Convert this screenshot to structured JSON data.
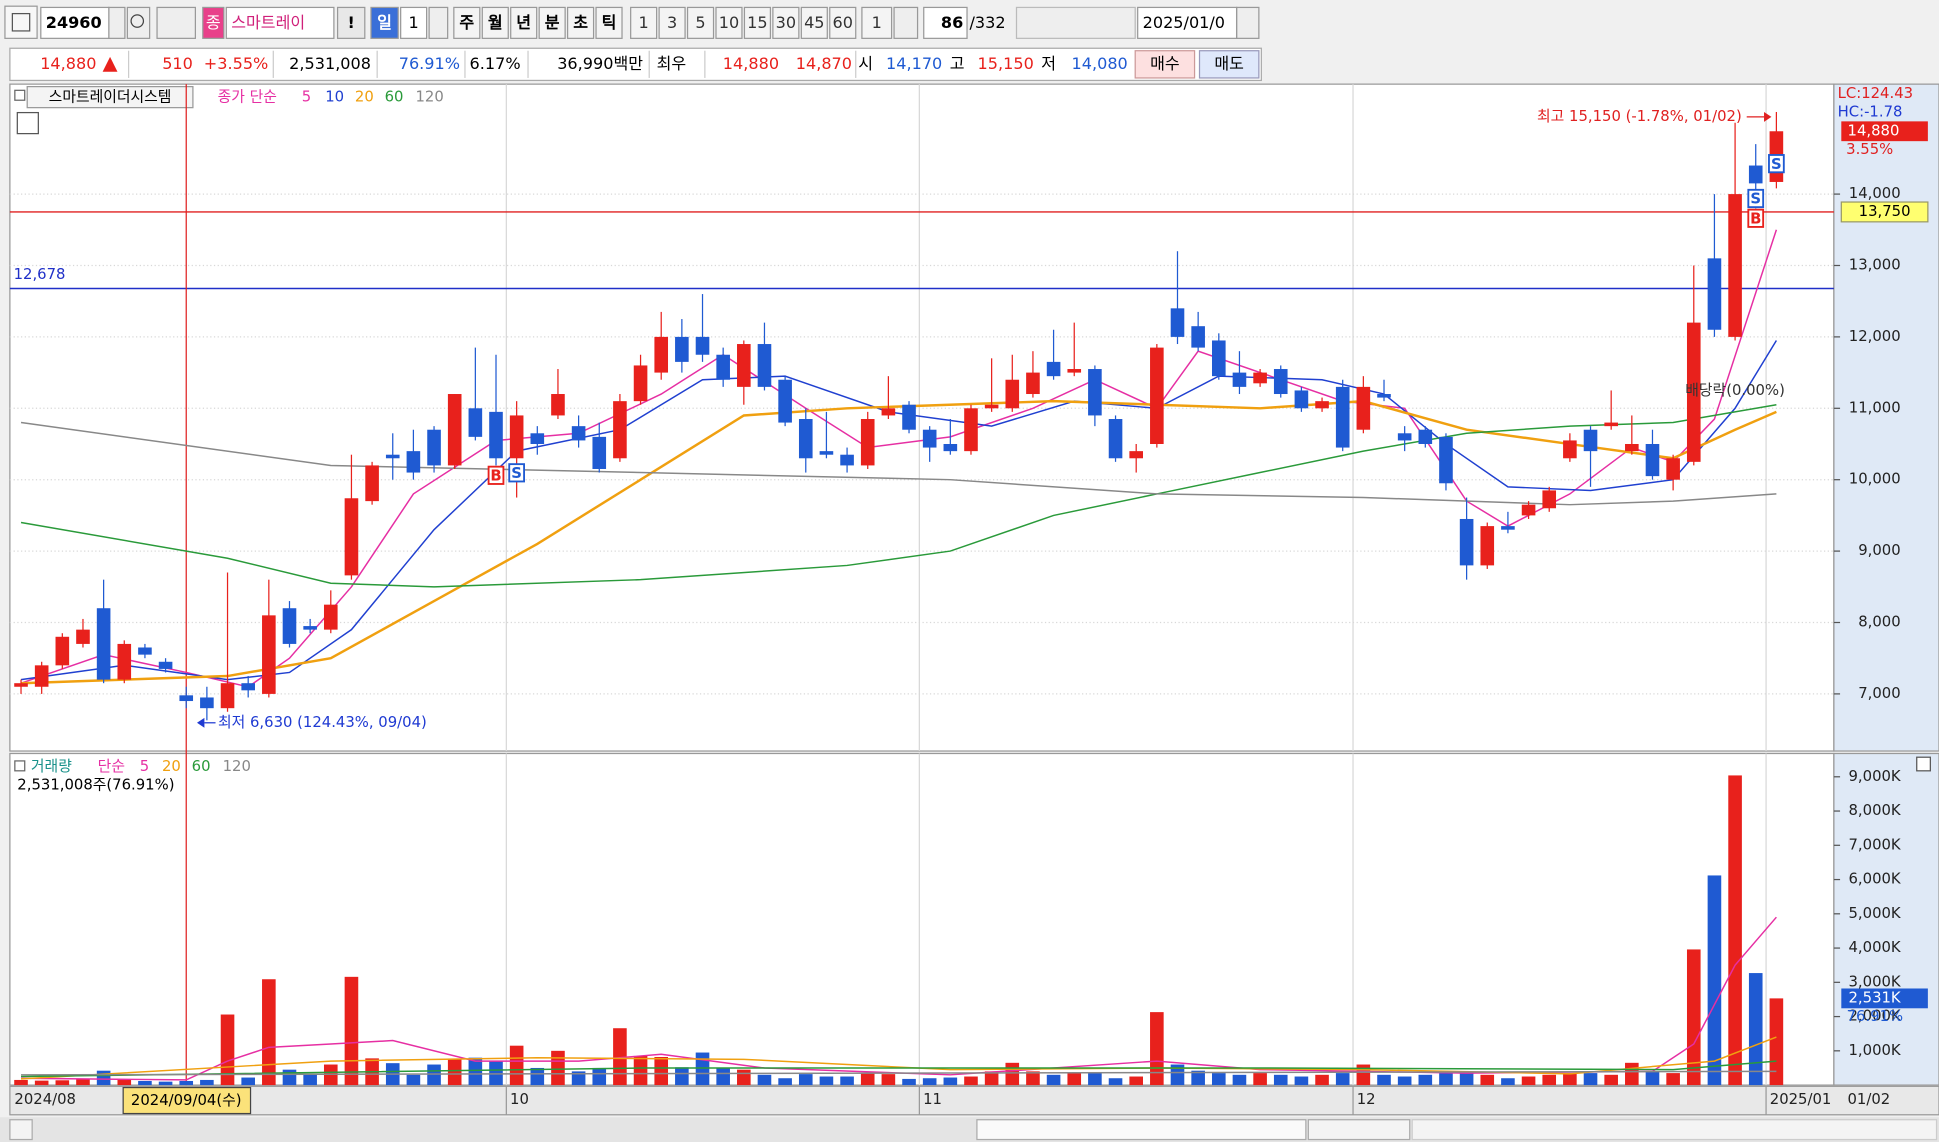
{
  "toolbar": {
    "code": "24960",
    "name_badge": "종",
    "name": "스마트레이",
    "flag": "!",
    "period_day": "일",
    "period_count": "1",
    "periods": [
      "주",
      "월",
      "년",
      "분",
      "초",
      "틱"
    ],
    "minutes": [
      "1",
      "3",
      "5",
      "10",
      "15",
      "30",
      "45",
      "60"
    ],
    "tick_count": "1",
    "view_count": "86",
    "total_count": "/332",
    "date": "2025/01/0"
  },
  "quote": {
    "price": "14,880",
    "change": "510",
    "change_pct": "+3.55%",
    "volume": "2,531,008",
    "volume_ratio": "76.91%",
    "turnover": "6.17%",
    "amount": "36,990백만",
    "bid_ask_label": "최우",
    "ask": "14,880",
    "bid": "14,870",
    "open_label": "시",
    "open": "14,170",
    "high_label": "고",
    "high": "15,150",
    "low_label": "저",
    "low": "14,080",
    "buy": "매수",
    "sell": "매도"
  },
  "chart_data": [
    {
      "type": "candlestick",
      "title": "스마트레이더시스템",
      "indicator_label": "종가 단순",
      "categories": [
        "2024/08",
        null,
        null,
        null,
        null,
        null,
        null,
        null,
        null,
        null,
        null,
        null,
        null,
        null,
        null,
        null,
        null,
        null,
        null,
        null,
        null,
        null,
        null,
        null,
        "10",
        null,
        null,
        null,
        null,
        null,
        null,
        null,
        null,
        null,
        null,
        null,
        null,
        null,
        null,
        null,
        null,
        null,
        null,
        null,
        "11",
        null,
        null,
        null,
        null,
        null,
        null,
        null,
        null,
        null,
        null,
        null,
        null,
        null,
        null,
        null,
        null,
        null,
        null,
        null,
        null,
        "12",
        null,
        null,
        null,
        null,
        null,
        null,
        null,
        null,
        null,
        null,
        null,
        null,
        null,
        null,
        null,
        null,
        null,
        null,
        null,
        "2025/01"
      ],
      "open": [
        7100,
        7100,
        7400,
        7700,
        8200,
        7200,
        7650,
        7450,
        6980,
        6950,
        6800,
        7150,
        7000,
        8200,
        7950,
        7900,
        8660,
        9700,
        10350,
        10400,
        10700,
        10200,
        11000,
        10950,
        10300,
        10650,
        10900,
        10750,
        10600,
        10300,
        11100,
        11500,
        12000,
        12000,
        11750,
        11300,
        11900,
        11400,
        10850,
        10400,
        10350,
        10200,
        10900,
        11050,
        10700,
        10500,
        10400,
        11000,
        11000,
        11200,
        11650,
        11500,
        11550,
        10850,
        10300,
        10500,
        12400,
        12150,
        11950,
        11500,
        11350,
        11550,
        11250,
        11000,
        11300,
        10700,
        11200,
        10650,
        10700,
        10600,
        9450,
        8800,
        9350,
        9500,
        9600,
        10300,
        10700,
        10750,
        10400,
        10500,
        10000,
        10250,
        13100,
        12000,
        14400,
        14170
      ],
      "high": [
        7200,
        7450,
        7850,
        8050,
        8600,
        7750,
        7700,
        7500,
        7100,
        7100,
        8700,
        7250,
        8600,
        8300,
        8050,
        8450,
        10350,
        10250,
        10650,
        10700,
        10750,
        11200,
        11850,
        11750,
        11100,
        10750,
        11550,
        10900,
        10800,
        11200,
        11750,
        12350,
        12250,
        12600,
        11850,
        11950,
        12200,
        11450,
        11000,
        10950,
        10450,
        10950,
        11450,
        11100,
        10750,
        10850,
        11050,
        11700,
        11750,
        11800,
        12100,
        12200,
        11600,
        10900,
        10500,
        11900,
        13200,
        12350,
        12050,
        11800,
        11550,
        11600,
        11300,
        11150,
        11400,
        11450,
        11400,
        10750,
        10750,
        10650,
        9750,
        9400,
        9550,
        9700,
        9900,
        10650,
        10750,
        11250,
        10900,
        10700,
        10350,
        13000,
        14000,
        15000,
        14700,
        15150
      ],
      "low": [
        7000,
        7000,
        7350,
        7650,
        7150,
        7150,
        7500,
        7300,
        6800,
        6630,
        6750,
        6950,
        6950,
        7650,
        7850,
        7850,
        8600,
        9650,
        10000,
        10000,
        10100,
        10150,
        10550,
        10200,
        9750,
        10350,
        10850,
        10450,
        10100,
        10250,
        11050,
        11400,
        11500,
        11650,
        11300,
        11050,
        11250,
        10750,
        10100,
        10300,
        10100,
        10150,
        10850,
        10650,
        10250,
        10350,
        10350,
        10950,
        10950,
        11150,
        11400,
        11450,
        10750,
        10250,
        10100,
        10450,
        11900,
        11800,
        11400,
        11200,
        11300,
        11150,
        10950,
        10950,
        10400,
        10650,
        11100,
        10400,
        10450,
        9850,
        8600,
        8750,
        9250,
        9450,
        9550,
        10250,
        9900,
        10700,
        10350,
        10000,
        9850,
        10200,
        12000,
        11950,
        13800,
        14080
      ],
      "close": [
        7150,
        7400,
        7800,
        7900,
        7200,
        7700,
        7550,
        7350,
        6900,
        6800,
        7150,
        7050,
        8100,
        7700,
        7900,
        8250,
        9740,
        10200,
        10300,
        10100,
        10200,
        11200,
        10600,
        10300,
        10900,
        10500,
        11200,
        10550,
        10150,
        11100,
        11600,
        12000,
        11650,
        11750,
        11400,
        11900,
        11300,
        10800,
        10300,
        10350,
        10200,
        10850,
        11000,
        10700,
        10450,
        10400,
        11000,
        11050,
        11400,
        11500,
        11450,
        11550,
        10900,
        10300,
        10400,
        11850,
        12000,
        11850,
        11450,
        11300,
        11500,
        11200,
        11000,
        11100,
        10450,
        11300,
        11150,
        10550,
        10500,
        9950,
        8800,
        9350,
        9300,
        9650,
        9850,
        10550,
        10400,
        10800,
        10500,
        10050,
        10300,
        12200,
        12100,
        14000,
        14150,
        14880
      ],
      "up_color": "#e8211c",
      "down_color": "#1f5ad2",
      "ylim": [
        6200,
        15540
      ],
      "yticks": [
        {
          "value": 7000,
          "label": "7,000"
        },
        {
          "value": 8000,
          "label": "8,000"
        },
        {
          "value": 9000,
          "label": "9,000"
        },
        {
          "value": 10000,
          "label": "10,000"
        },
        {
          "value": 11000,
          "label": "11,000"
        },
        {
          "value": 12000,
          "label": "12,000"
        },
        {
          "value": 13000,
          "label": "13,000"
        },
        {
          "value": 14000,
          "label": "14,000"
        }
      ],
      "ma": [
        {
          "name": "5",
          "color": "#e62fa3",
          "x": [
            0,
            4,
            8,
            11,
            13,
            16,
            19,
            23,
            27,
            31,
            34,
            38,
            41,
            45,
            49,
            52,
            55,
            57,
            61,
            64,
            67,
            70,
            72,
            75,
            78,
            80,
            82,
            85
          ],
          "values": [
            7150,
            7550,
            7300,
            7100,
            7500,
            8500,
            9800,
            10550,
            10650,
            11200,
            11750,
            11000,
            10450,
            10600,
            11000,
            11400,
            11000,
            11800,
            11400,
            11100,
            11000,
            9700,
            9350,
            9800,
            10450,
            10250,
            10850,
            13500
          ]
        },
        {
          "name": "10",
          "color": "#2040d0",
          "x": [
            0,
            5,
            10,
            13,
            16,
            20,
            24,
            29,
            33,
            37,
            42,
            47,
            51,
            55,
            58,
            63,
            66,
            69,
            72,
            76,
            80,
            83,
            85
          ],
          "values": [
            7200,
            7400,
            7200,
            7300,
            7900,
            9300,
            10400,
            10700,
            11400,
            11450,
            10950,
            10750,
            11100,
            11000,
            11450,
            11400,
            11200,
            10500,
            9900,
            9850,
            10000,
            11000,
            11950
          ]
        },
        {
          "name": "20",
          "color": "#f0a010",
          "x": [
            0,
            10,
            15,
            20,
            25,
            30,
            35,
            40,
            50,
            60,
            65,
            70,
            75,
            80,
            83,
            85
          ],
          "values": [
            7150,
            7250,
            7500,
            8300,
            9100,
            10000,
            10900,
            11000,
            11100,
            11000,
            11100,
            10700,
            10500,
            10300,
            10700,
            10950
          ]
        },
        {
          "name": "60",
          "color": "#2a9a3a",
          "x": [
            0,
            10,
            15,
            20,
            30,
            40,
            45,
            50,
            55,
            60,
            65,
            70,
            75,
            80,
            85
          ],
          "values": [
            9400,
            8900,
            8550,
            8500,
            8600,
            8800,
            9000,
            9500,
            9800,
            10100,
            10400,
            10650,
            10750,
            10800,
            11050
          ]
        },
        {
          "name": "120",
          "color": "#888888",
          "x": [
            0,
            15,
            30,
            45,
            55,
            65,
            75,
            80,
            85
          ],
          "values": [
            10800,
            10200,
            10100,
            10000,
            9800,
            9750,
            9650,
            9700,
            9800
          ]
        }
      ],
      "hlines": [
        {
          "value": 12678,
          "label": "12,678",
          "color": "#2030c8",
          "label_side": "left"
        },
        {
          "value": 13750,
          "label": "13,750",
          "color": "#e02020",
          "label_side": "right"
        }
      ],
      "last": {
        "value": 14880,
        "label": "14,880",
        "change": "3.55%"
      },
      "lc": "LC:124.43",
      "hc": "HC:-1.78",
      "annotations": [
        {
          "x": 85,
          "y": 15150,
          "text": "최고 15,150 (-1.78%, 01/02)",
          "side": "left"
        },
        {
          "x": 9,
          "y": 6630,
          "text": "최저 6,630 (124.43%, 09/04)",
          "side": "right"
        }
      ],
      "signals": [
        {
          "x": 23,
          "label": "B"
        },
        {
          "x": 24,
          "label": "S"
        },
        {
          "x": 84,
          "label": "B"
        },
        {
          "x": 84,
          "label": "S"
        },
        {
          "x": 85,
          "label": "S"
        }
      ],
      "events": [
        {
          "x": 83,
          "text": "배당락(0.00%)"
        }
      ],
      "cursor": {
        "x": 8,
        "label": "2024/09/04(수)"
      },
      "current_date": "01/02"
    },
    {
      "type": "bar",
      "title": "거래량",
      "indicator_label": "단순",
      "summary": "2,531,008주(76.91%)",
      "values": [
        150,
        130,
        140,
        180,
        420,
        150,
        120,
        100,
        120,
        150,
        2060,
        220,
        3090,
        450,
        300,
        600,
        3160,
        780,
        640,
        300,
        600,
        750,
        800,
        700,
        1150,
        500,
        1000,
        400,
        500,
        1660,
        850,
        820,
        520,
        950,
        500,
        450,
        300,
        200,
        320,
        250,
        250,
        350,
        320,
        180,
        200,
        220,
        250,
        400,
        650,
        400,
        300,
        350,
        350,
        200,
        250,
        2130,
        600,
        420,
        350,
        300,
        350,
        300,
        250,
        300,
        350,
        600,
        300,
        250,
        300,
        350,
        400,
        300,
        200,
        250,
        300,
        350,
        350,
        300,
        650,
        400,
        350,
        3960,
        6120,
        9040,
        3270,
        2531
      ],
      "ylim": [
        0,
        9680
      ],
      "yticks": [
        {
          "value": 1000,
          "label": "1,000K"
        },
        {
          "value": 2000,
          "label": "2,000K"
        },
        {
          "value": 3000,
          "label": "3,000K"
        },
        {
          "value": 4000,
          "label": "4,000K"
        },
        {
          "value": 5000,
          "label": "5,000K"
        },
        {
          "value": 6000,
          "label": "6,000K"
        },
        {
          "value": 7000,
          "label": "7,000K"
        },
        {
          "value": 8000,
          "label": "8,000K"
        },
        {
          "value": 9000,
          "label": "9,000K"
        }
      ],
      "ma": [
        {
          "name": "5",
          "color": "#e62fa3",
          "x": [
            0,
            8,
            10,
            12,
            15,
            18,
            22,
            27,
            31,
            36,
            45,
            55,
            60,
            70,
            79,
            81,
            83,
            85
          ],
          "values": [
            200,
            150,
            700,
            1100,
            1200,
            1300,
            700,
            700,
            900,
            500,
            300,
            700,
            450,
            350,
            400,
            1200,
            3500,
            4900
          ]
        },
        {
          "name": "20",
          "color": "#f0a010",
          "x": [
            0,
            15,
            25,
            35,
            45,
            55,
            65,
            75,
            82,
            85
          ],
          "values": [
            180,
            700,
            800,
            750,
            450,
            500,
            450,
            330,
            700,
            1400
          ]
        },
        {
          "name": "60",
          "color": "#2a9a3a",
          "x": [
            0,
            30,
            60,
            80,
            85
          ],
          "values": [
            250,
            500,
            500,
            450,
            700
          ]
        },
        {
          "name": "120",
          "color": "#888888",
          "x": [
            0,
            85
          ],
          "values": [
            300,
            400
          ]
        }
      ],
      "last": {
        "value": 2531,
        "label": "2,531K",
        "ratio": "76.91%"
      }
    }
  ]
}
